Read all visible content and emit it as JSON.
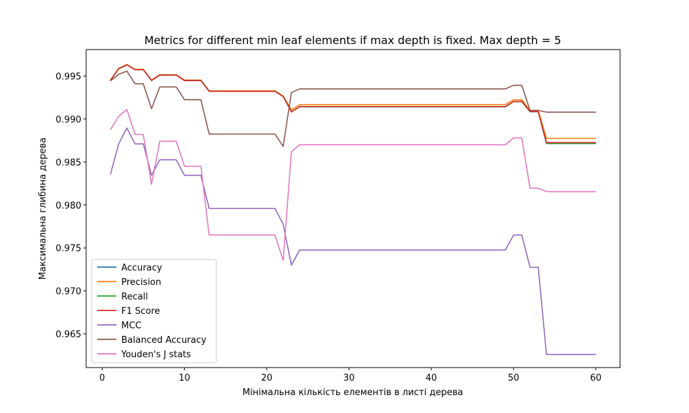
{
  "chart_data": {
    "type": "line",
    "title": "Metrics for different min leaf elements if max depth is fixed. Max depth = 5",
    "xlabel": "Мінімальна кількість елементів в листі дерева",
    "ylabel": "Максимальна глибина дерева",
    "xlim": [
      -1.95,
      62.95
    ],
    "ylim": [
      0.96108,
      0.99808
    ],
    "xticks": [
      0,
      10,
      20,
      30,
      40,
      50,
      60
    ],
    "yticks": [
      0.965,
      0.97,
      0.975,
      0.98,
      0.985,
      0.99,
      0.995
    ],
    "ytick_labels": [
      "0.965",
      "0.970",
      "0.975",
      "0.980",
      "0.985",
      "0.990",
      "0.995"
    ],
    "grid": false,
    "legend_position": "lower-left",
    "series": [
      {
        "name": "Accuracy",
        "color": "#1f77b4",
        "points": [
          [
            1,
            0.99448
          ],
          [
            2,
            0.99585
          ],
          [
            3,
            0.99631
          ],
          [
            4,
            0.99574
          ],
          [
            5,
            0.99574
          ],
          [
            6,
            0.99448
          ],
          [
            7,
            0.99512
          ],
          [
            8,
            0.99512
          ],
          [
            9,
            0.99512
          ],
          [
            10,
            0.99448
          ],
          [
            12,
            0.99448
          ],
          [
            13,
            0.99323
          ],
          [
            21,
            0.99323
          ],
          [
            22,
            0.99262
          ],
          [
            23,
            0.99083
          ],
          [
            24,
            0.99143
          ],
          [
            49,
            0.99143
          ],
          [
            50,
            0.99202
          ],
          [
            51,
            0.99202
          ],
          [
            52,
            0.99085
          ],
          [
            53,
            0.99085
          ],
          [
            54,
            0.98715
          ],
          [
            60,
            0.98715
          ]
        ]
      },
      {
        "name": "Precision",
        "color": "#ff7f0e",
        "points": [
          [
            1,
            0.99453
          ],
          [
            2,
            0.99589
          ],
          [
            3,
            0.99634
          ],
          [
            4,
            0.99578
          ],
          [
            5,
            0.99578
          ],
          [
            6,
            0.99453
          ],
          [
            7,
            0.99515
          ],
          [
            8,
            0.99515
          ],
          [
            9,
            0.99515
          ],
          [
            10,
            0.99453
          ],
          [
            12,
            0.99453
          ],
          [
            13,
            0.99328
          ],
          [
            21,
            0.99328
          ],
          [
            22,
            0.99268
          ],
          [
            23,
            0.99107
          ],
          [
            24,
            0.99168
          ],
          [
            49,
            0.99168
          ],
          [
            50,
            0.99224
          ],
          [
            51,
            0.99224
          ],
          [
            52,
            0.991
          ],
          [
            53,
            0.991
          ],
          [
            54,
            0.98775
          ],
          [
            60,
            0.98775
          ]
        ]
      },
      {
        "name": "Recall",
        "color": "#2ca02c",
        "points": [
          [
            1,
            0.99448
          ],
          [
            2,
            0.99585
          ],
          [
            3,
            0.99631
          ],
          [
            4,
            0.99574
          ],
          [
            5,
            0.99574
          ],
          [
            6,
            0.99448
          ],
          [
            7,
            0.99512
          ],
          [
            8,
            0.99512
          ],
          [
            9,
            0.99512
          ],
          [
            10,
            0.99448
          ],
          [
            12,
            0.99448
          ],
          [
            13,
            0.99323
          ],
          [
            21,
            0.99323
          ],
          [
            22,
            0.99262
          ],
          [
            23,
            0.99083
          ],
          [
            24,
            0.99143
          ],
          [
            49,
            0.99143
          ],
          [
            50,
            0.99202
          ],
          [
            51,
            0.99202
          ],
          [
            52,
            0.99085
          ],
          [
            53,
            0.99085
          ],
          [
            54,
            0.98715
          ],
          [
            60,
            0.98715
          ]
        ]
      },
      {
        "name": "F1 Score",
        "color": "#d62728",
        "points": [
          [
            1,
            0.99448
          ],
          [
            2,
            0.99583
          ],
          [
            3,
            0.9963
          ],
          [
            4,
            0.99573
          ],
          [
            5,
            0.99573
          ],
          [
            6,
            0.99448
          ],
          [
            7,
            0.99511
          ],
          [
            8,
            0.99511
          ],
          [
            9,
            0.99511
          ],
          [
            10,
            0.99448
          ],
          [
            12,
            0.99448
          ],
          [
            13,
            0.99322
          ],
          [
            21,
            0.99322
          ],
          [
            22,
            0.99262
          ],
          [
            23,
            0.99085
          ],
          [
            24,
            0.99145
          ],
          [
            49,
            0.99145
          ],
          [
            50,
            0.99205
          ],
          [
            51,
            0.99205
          ],
          [
            52,
            0.99087
          ],
          [
            53,
            0.99087
          ],
          [
            54,
            0.98725
          ],
          [
            60,
            0.98725
          ]
        ]
      },
      {
        "name": "MCC",
        "color": "#9467bd",
        "points": [
          [
            1,
            0.98355
          ],
          [
            2,
            0.9871
          ],
          [
            3,
            0.98895
          ],
          [
            4,
            0.9871
          ],
          [
            5,
            0.9871
          ],
          [
            6,
            0.98345
          ],
          [
            7,
            0.98525
          ],
          [
            8,
            0.98525
          ],
          [
            9,
            0.98525
          ],
          [
            10,
            0.98345
          ],
          [
            12,
            0.98345
          ],
          [
            13,
            0.9796
          ],
          [
            21,
            0.9796
          ],
          [
            22,
            0.97775
          ],
          [
            23,
            0.973
          ],
          [
            24,
            0.97475
          ],
          [
            49,
            0.97475
          ],
          [
            50,
            0.9765
          ],
          [
            51,
            0.9765
          ],
          [
            52,
            0.97275
          ],
          [
            53,
            0.97275
          ],
          [
            54,
            0.9626
          ],
          [
            60,
            0.9626
          ]
        ]
      },
      {
        "name": "Balanced Accuracy",
        "color": "#8c564b",
        "points": [
          [
            1,
            0.99443
          ],
          [
            2,
            0.9952
          ],
          [
            3,
            0.99557
          ],
          [
            4,
            0.9941
          ],
          [
            5,
            0.9941
          ],
          [
            6,
            0.9912
          ],
          [
            7,
            0.99373
          ],
          [
            8,
            0.99373
          ],
          [
            9,
            0.99373
          ],
          [
            10,
            0.99225
          ],
          [
            12,
            0.99225
          ],
          [
            13,
            0.98825
          ],
          [
            21,
            0.98825
          ],
          [
            22,
            0.9868
          ],
          [
            23,
            0.99308
          ],
          [
            24,
            0.9935
          ],
          [
            49,
            0.9935
          ],
          [
            50,
            0.99392
          ],
          [
            51,
            0.99392
          ],
          [
            52,
            0.991
          ],
          [
            53,
            0.991
          ],
          [
            54,
            0.9908
          ],
          [
            60,
            0.9908
          ]
        ]
      },
      {
        "name": "Youden's J stats",
        "color": "#e377c2",
        "points": [
          [
            1,
            0.98875
          ],
          [
            2,
            0.9903
          ],
          [
            3,
            0.9911
          ],
          [
            4,
            0.9882
          ],
          [
            5,
            0.9882
          ],
          [
            6,
            0.9824
          ],
          [
            7,
            0.9874
          ],
          [
            8,
            0.9874
          ],
          [
            9,
            0.9874
          ],
          [
            10,
            0.9845
          ],
          [
            12,
            0.9845
          ],
          [
            13,
            0.9765
          ],
          [
            21,
            0.9765
          ],
          [
            22,
            0.97355
          ],
          [
            23,
            0.9862
          ],
          [
            24,
            0.987
          ],
          [
            49,
            0.987
          ],
          [
            50,
            0.9878
          ],
          [
            51,
            0.9878
          ],
          [
            52,
            0.98195
          ],
          [
            53,
            0.98195
          ],
          [
            54,
            0.98155
          ],
          [
            60,
            0.98155
          ]
        ]
      }
    ]
  }
}
